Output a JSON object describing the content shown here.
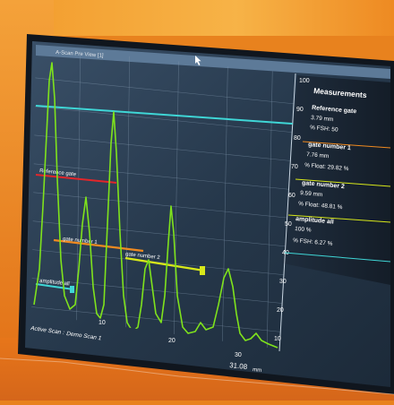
{
  "window": {
    "title": "A-Scan Pre View [1]"
  },
  "y_axis_ticks": [
    "100",
    "90",
    "80",
    "70",
    "60",
    "50",
    "40",
    "30",
    "20",
    "10"
  ],
  "x_axis_ticks": [
    "10",
    "20",
    "30"
  ],
  "x_readout": {
    "value": "31.08",
    "unit": "mm"
  },
  "status": {
    "label": "Active Scan :",
    "value": "Demo Scan 1"
  },
  "measurements": {
    "title": "Measurements",
    "reference_gate": {
      "name": "Reference gate",
      "pos": "3.79 mm",
      "fsh": "% FSH: 50"
    },
    "gate1": {
      "name": "gate number 1",
      "pos": "7.76 mm",
      "float": "% Float: 29.82 %"
    },
    "gate2": {
      "name": "gate number 2",
      "pos": "9.59 mm",
      "float": "% Float: 48.81 %"
    },
    "amplitude": {
      "name": "amplitude all",
      "val": "100 %",
      "fsh": "% FSH: 6.27 %"
    }
  },
  "gate_labels": {
    "gate1": "gate number 1",
    "gate2": "gate number 2",
    "amplitude": "amplitude all",
    "reference": "Reference gate"
  },
  "colors": {
    "signal": "#7fe31c",
    "cyan": "#3fd6d6",
    "orange": "#f08a20",
    "yellow": "#d8e81a",
    "red": "#e3262a",
    "screen": "#2b3f55"
  }
}
